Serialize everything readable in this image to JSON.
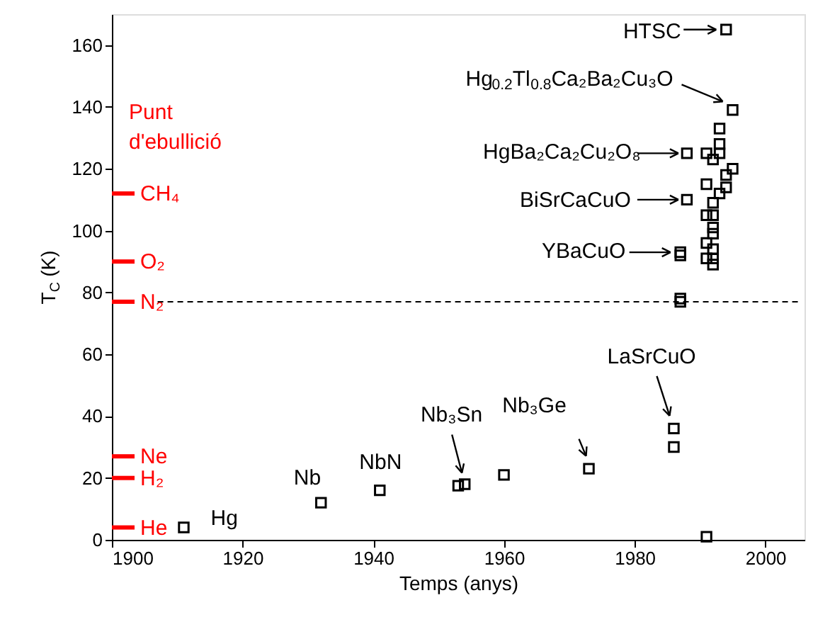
{
  "chart_data": {
    "type": "scatter",
    "xlabel": "Temps (anys)",
    "ylabel": "T$_{C}$ (K)",
    "x": [
      1911,
      1932,
      1941,
      1953,
      1954,
      1960,
      1973,
      1986,
      1986,
      1987,
      1987,
      1987,
      1987,
      1988,
      1988,
      1991,
      1991,
      1991,
      1991,
      1991,
      1991,
      1992,
      1992,
      1992,
      1992,
      1992,
      1992,
      1992,
      1992,
      1993,
      1993,
      1993,
      1993,
      1994,
      1994,
      1994,
      1995,
      1995
    ],
    "series": [
      {
        "color": "#000000",
        "values": [
          4,
          12,
          16,
          17.5,
          18,
          21,
          23,
          30,
          36,
          77,
          78,
          92,
          93,
          110,
          125,
          1,
          91,
          96,
          105,
          115,
          125,
          89,
          91,
          94,
          99,
          101,
          105,
          109,
          123,
          112,
          125,
          128,
          133,
          114,
          118,
          165,
          120,
          139
        ]
      },
      {
        "type": "line",
        "x": [
          1907,
          2005
        ],
        "values": [
          77,
          77
        ],
        "color": "#000000",
        "line_style": "dashed",
        "marker": "none"
      }
    ],
    "marker": "square",
    "xlim": [
      1900,
      2006
    ],
    "ylim": [
      0,
      170
    ],
    "xticks": [
      1900,
      1920,
      1940,
      1960,
      1980,
      2000
    ],
    "yticks": [
      0,
      20,
      40,
      60,
      80,
      100,
      120,
      140,
      160
    ],
    "grid": false,
    "ref_lines": [
      {
        "axis": "y",
        "value": 4,
        "label": "He",
        "color": "#ff0000"
      },
      {
        "axis": "y",
        "value": 20,
        "label": "H₂",
        "color": "#ff0000"
      },
      {
        "axis": "y",
        "value": 27,
        "label": "Ne",
        "color": "#ff0000"
      },
      {
        "axis": "y",
        "value": 77,
        "label": "N₂",
        "color": "#ff0000"
      },
      {
        "axis": "y",
        "value": 90,
        "label": "O₂",
        "color": "#ff0000"
      },
      {
        "axis": "y",
        "value": 112,
        "label": "CH₄",
        "color": "#ff0000"
      }
    ],
    "annotations": [
      "Punt d'ebullició",
      {
        "text": "HTSC",
        "x": 1994,
        "y": 165
      },
      {
        "text": "Hg$_{0.2}$Tl$_{0.8}$Ca₂Ba₂Cu₃O",
        "x": 1995,
        "y": 139
      },
      {
        "text": "HgBa₂Ca₂Cu₂O₈",
        "x": 1988,
        "y": 125
      },
      {
        "text": "BiSrCaCuO",
        "x": 1988,
        "y": 110
      },
      {
        "text": "YBaCuO",
        "x": 1987,
        "y": 93
      },
      {
        "text": "LaSrCuO",
        "x": 1986,
        "y": 36
      },
      {
        "text": "Nb₃Ge",
        "x": 1973,
        "y": 23
      },
      {
        "text": "Nb₃Sn",
        "x": 1954,
        "y": 18
      },
      {
        "text": "NbN",
        "x": 1941,
        "y": 16
      },
      {
        "text": "Nb",
        "x": 1932,
        "y": 12
      },
      {
        "text": "Hg",
        "x": 1911,
        "y": 4
      }
    ]
  }
}
